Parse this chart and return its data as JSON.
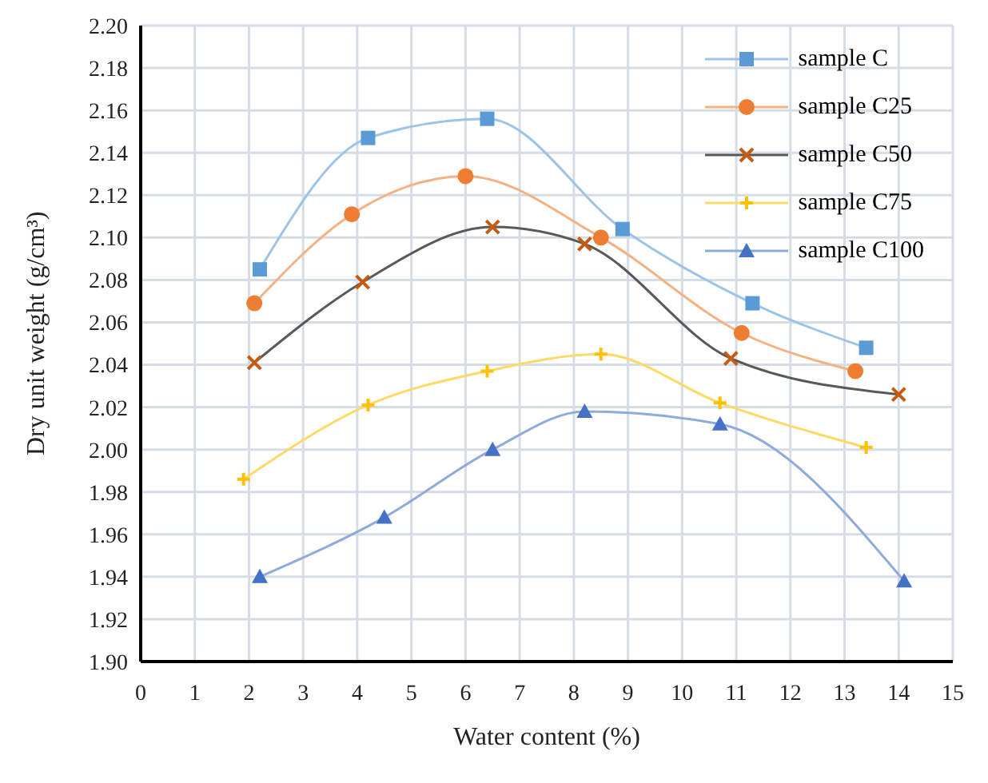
{
  "chart_data": {
    "type": "line",
    "xlabel": "Water content (%)",
    "ylabel": "Dry unit weight (g/cm³)",
    "xlim": [
      0,
      15
    ],
    "xticks": [
      0,
      1,
      2,
      3,
      4,
      5,
      6,
      7,
      8,
      9,
      10,
      11,
      12,
      13,
      14,
      15
    ],
    "ylim": [
      1.9,
      2.2
    ],
    "yticks": [
      {
        "value": 1.9,
        "label": "1.90"
      },
      {
        "value": 1.92,
        "label": "1.92"
      },
      {
        "value": 1.94,
        "label": "1.94"
      },
      {
        "value": 1.96,
        "label": "1.96"
      },
      {
        "value": 1.98,
        "label": "1.98"
      },
      {
        "value": 2.0,
        "label": "2.00"
      },
      {
        "value": 2.02,
        "label": "2.02"
      },
      {
        "value": 2.04,
        "label": "2.04"
      },
      {
        "value": 2.06,
        "label": "2.06"
      },
      {
        "value": 2.08,
        "label": "2.08"
      },
      {
        "value": 2.1,
        "label": "2.10"
      },
      {
        "value": 2.12,
        "label": "2.12"
      },
      {
        "value": 2.14,
        "label": "2.14"
      },
      {
        "value": 2.16,
        "label": "2.16"
      },
      {
        "value": 2.18,
        "label": "2.18"
      },
      {
        "value": 2.2,
        "label": "2.20"
      }
    ],
    "grid": true,
    "legend": "top right",
    "series": [
      {
        "name": "sample C",
        "color": "#9dc3e6",
        "marker": "square",
        "x": [
          2.2,
          4.2,
          6.4,
          8.9,
          11.3,
          13.4
        ],
        "values": [
          2.085,
          2.147,
          2.156,
          2.104,
          2.069,
          2.048
        ]
      },
      {
        "name": "sample C25",
        "color": "#f4b183",
        "marker": "circle",
        "x": [
          2.1,
          3.9,
          6.0,
          8.5,
          11.1,
          13.2
        ],
        "values": [
          2.069,
          2.111,
          2.129,
          2.1,
          2.055,
          2.037
        ]
      },
      {
        "name": "sample C50",
        "color": "#595959",
        "marker": "cross",
        "x": [
          2.1,
          4.1,
          6.5,
          8.2,
          10.9,
          14.0
        ],
        "values": [
          2.041,
          2.079,
          2.105,
          2.097,
          2.043,
          2.026
        ]
      },
      {
        "name": "sample C75",
        "color": "#ffd966",
        "marker": "plus",
        "x": [
          1.9,
          4.2,
          6.4,
          8.5,
          10.7,
          13.4
        ],
        "values": [
          1.986,
          2.021,
          2.037,
          2.045,
          2.022,
          2.001
        ]
      },
      {
        "name": "sample C100",
        "color": "#8faadc",
        "marker": "triangle",
        "x": [
          2.2,
          4.5,
          6.5,
          8.2,
          10.7,
          14.1
        ],
        "values": [
          1.94,
          1.968,
          2.0,
          2.018,
          2.012,
          1.938
        ]
      }
    ]
  }
}
